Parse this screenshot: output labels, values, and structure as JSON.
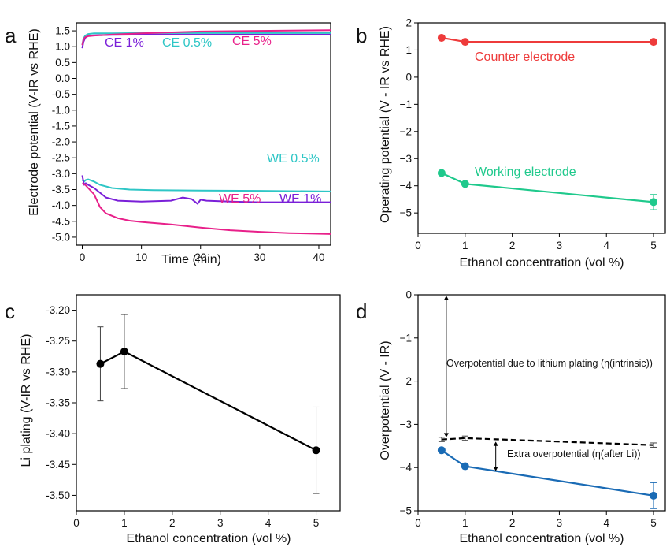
{
  "chart_data": [
    {
      "panel": "a",
      "type": "line",
      "xlabel": "Time (min)",
      "ylabel": "Electrode potential (V-IR vs RHE)",
      "xlim": [
        -1,
        42
      ],
      "ylim": [
        -5.25,
        1.75
      ],
      "xticks": [
        0,
        10,
        20,
        30,
        40
      ],
      "yticks": [
        1.5,
        1.0,
        0.5,
        0.0,
        -0.5,
        -1.0,
        -1.5,
        -2.0,
        -2.5,
        -3.0,
        -3.5,
        -4.0,
        -4.5,
        -5.0
      ],
      "ytick_labels": [
        "1.5",
        "1.0",
        "0.5",
        "0.0",
        "-0.5",
        "-1.0",
        "-1.5",
        "-2.0",
        "-2.5",
        "-3.0",
        "-3.5",
        "-4.0",
        "-4.5",
        "-5.0"
      ],
      "series": [
        {
          "name": "CE 1%",
          "color": "#7a1fd8",
          "x": [
            0,
            0.2,
            0.5,
            1,
            2,
            5,
            10,
            20,
            30,
            42
          ],
          "y": [
            0.95,
            1.15,
            1.28,
            1.34,
            1.36,
            1.37,
            1.38,
            1.38,
            1.38,
            1.38
          ]
        },
        {
          "name": "CE 0.5%",
          "color": "#2ec6c6",
          "x": [
            0,
            0.2,
            0.5,
            1,
            2,
            5,
            10,
            20,
            30,
            42
          ],
          "y": [
            1.05,
            1.25,
            1.35,
            1.4,
            1.42,
            1.42,
            1.43,
            1.43,
            1.43,
            1.43
          ]
        },
        {
          "name": "CE 5%",
          "color": "#e8208a",
          "x": [
            0,
            0.2,
            0.5,
            1,
            2,
            5,
            10,
            20,
            30,
            42
          ],
          "y": [
            1.05,
            1.22,
            1.3,
            1.33,
            1.35,
            1.38,
            1.42,
            1.48,
            1.5,
            1.52
          ]
        },
        {
          "name": "WE 0.5%",
          "color": "#2ec6c6",
          "x": [
            0,
            0.3,
            0.6,
            1,
            2,
            3,
            5,
            8,
            12,
            20,
            30,
            42
          ],
          "y": [
            -3.2,
            -3.25,
            -3.2,
            -3.18,
            -3.25,
            -3.35,
            -3.45,
            -3.5,
            -3.52,
            -3.53,
            -3.54,
            -3.56
          ]
        },
        {
          "name": "WE 1%",
          "color": "#7a1fd8",
          "x": [
            0,
            0.3,
            0.6,
            1,
            2,
            3,
            4,
            6,
            10,
            15,
            17,
            18.5,
            19.5,
            20,
            21,
            25,
            30,
            42
          ],
          "y": [
            -3.05,
            -3.35,
            -3.3,
            -3.35,
            -3.45,
            -3.6,
            -3.75,
            -3.85,
            -3.88,
            -3.85,
            -3.75,
            -3.8,
            -3.95,
            -3.82,
            -3.85,
            -3.88,
            -3.9,
            -3.9
          ]
        },
        {
          "name": "WE 5%",
          "color": "#e8208a",
          "x": [
            0,
            0.5,
            1,
            2,
            3,
            4,
            6,
            8,
            10,
            15,
            20,
            25,
            30,
            35,
            42
          ],
          "y": [
            -3.3,
            -3.35,
            -3.45,
            -3.65,
            -4.05,
            -4.25,
            -4.4,
            -4.48,
            -4.52,
            -4.6,
            -4.7,
            -4.78,
            -4.83,
            -4.87,
            -4.9
          ]
        }
      ],
      "annotations": [
        "CE 1%",
        "CE 0.5%",
        "CE 5%",
        "WE 0.5%",
        "WE 5%",
        "WE 1%"
      ]
    },
    {
      "panel": "b",
      "type": "line",
      "xlabel": "Ethanol concentration (vol %)",
      "ylabel": "Operating potential (V - IR vs RHE)",
      "xlim": [
        0,
        5.25
      ],
      "ylim": [
        -5.75,
        2.0
      ],
      "xticks": [
        0,
        1,
        2,
        3,
        4,
        5
      ],
      "yticks": [
        2,
        1,
        0,
        -1,
        -2,
        -3,
        -4,
        -5
      ],
      "ytick_labels": [
        "2",
        "1",
        "0",
        "−1",
        "−2",
        "−3",
        "−4",
        "−5"
      ],
      "series": [
        {
          "name": "Counter electrode",
          "color": "#ee3b3b",
          "x": [
            0.5,
            1,
            5
          ],
          "y": [
            1.45,
            1.3,
            1.3
          ],
          "err": [
            0,
            0,
            0
          ]
        },
        {
          "name": "Working electrode",
          "color": "#1fc98c",
          "x": [
            0.5,
            1,
            5
          ],
          "y": [
            -3.53,
            -3.93,
            -4.6
          ],
          "err": [
            0,
            0,
            0.28
          ]
        }
      ]
    },
    {
      "panel": "c",
      "type": "line",
      "xlabel": "Ethanol concentration (vol %)",
      "ylabel": "Li plating (V-IR vs RHE)",
      "xlim": [
        0,
        5.5
      ],
      "ylim": [
        -3.525,
        -3.175
      ],
      "xticks": [
        0,
        1,
        2,
        3,
        4,
        5
      ],
      "yticks": [
        -3.2,
        -3.25,
        -3.3,
        -3.35,
        -3.4,
        -3.45,
        -3.5
      ],
      "ytick_labels": [
        "-3.20",
        "-3.25",
        "-3.30",
        "-3.35",
        "-3.40",
        "-3.45",
        "-3.50"
      ],
      "series": [
        {
          "name": "",
          "color": "#000000",
          "x": [
            0.5,
            1,
            5
          ],
          "y": [
            -3.287,
            -3.267,
            -3.427
          ],
          "err": [
            0.06,
            0.06,
            0.07
          ]
        }
      ]
    },
    {
      "panel": "d",
      "type": "line",
      "xlabel": "Ethanol concentration (vol %)",
      "ylabel": "Overpotential (V - IR)",
      "xlim": [
        0,
        5.25
      ],
      "ylim": [
        -5.0,
        0.0
      ],
      "xticks": [
        0,
        1,
        2,
        3,
        4,
        5
      ],
      "yticks": [
        0,
        -1,
        -2,
        -3,
        -4,
        -5
      ],
      "ytick_labels": [
        "0",
        "−1",
        "−2",
        "−3",
        "−4",
        "−5"
      ],
      "series": [
        {
          "name": "",
          "color": "#000000",
          "dashed": true,
          "x": [
            0.5,
            1,
            5
          ],
          "y": [
            -3.35,
            -3.32,
            -3.48
          ],
          "err": [
            0.05,
            0.05,
            0.05
          ]
        },
        {
          "name": "",
          "color": "#1a6bb5",
          "x": [
            0.5,
            1,
            5
          ],
          "y": [
            -3.6,
            -3.97,
            -4.65
          ],
          "err": [
            0,
            0,
            0.3
          ]
        }
      ],
      "annotations": [
        "Overpotential due to lithium plating (η(intrinsic))",
        "Extra overpotential (η(after Li))"
      ]
    }
  ],
  "panel_letters": [
    "a",
    "b",
    "c",
    "d"
  ]
}
